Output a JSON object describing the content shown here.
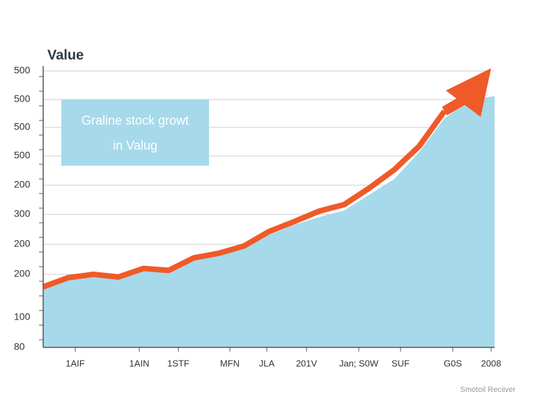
{
  "chart_data": {
    "type": "area",
    "title": "Value",
    "annotation": [
      "Graline stock growt",
      "in Valug"
    ],
    "footer": "Smotoil Reciiver",
    "y_labels": [
      "500",
      "500",
      "500",
      "500",
      "200",
      "300",
      "200",
      "200",
      "100",
      "80"
    ],
    "x_labels": [
      "1AIF",
      "1AIN",
      "1STF",
      "MFN",
      "JLA",
      "201V",
      "Jan; S0W",
      "SUF",
      "G0S",
      "2008"
    ],
    "ylim": [
      80,
      500
    ],
    "series": [
      {
        "color": "#a6d9ea",
        "values": [
          174,
          185,
          190,
          187,
          198,
          195,
          213,
          219,
          230,
          251,
          266,
          278,
          288,
          312,
          336,
          377,
          428,
          455,
          462
        ]
      },
      {
        "color": "#ef5a28",
        "values": [
          172,
          186,
          191,
          187,
          200,
          197,
          216,
          223,
          234,
          256,
          271,
          287,
          297,
          322,
          350,
          386,
          439
        ]
      }
    ]
  }
}
